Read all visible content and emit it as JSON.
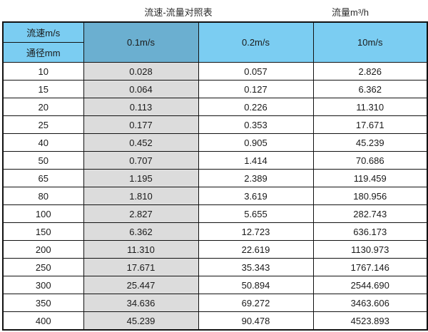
{
  "titles": {
    "left": "流速-流量对照表",
    "right": "流量m³/h"
  },
  "colors": {
    "header_blue": "#7bcdf2",
    "header_blue_dark": "#6bafd0",
    "highlight_column_gray": "#dcdcdc",
    "border": "#121212",
    "text": "#1a1a1a"
  },
  "chart_data": {
    "type": "table",
    "title": "流速-流量对照表",
    "unit_label": "流量m³/h",
    "corner_top": "流速m/s",
    "corner_bottom": "通径mm",
    "columns": [
      "0.1m/s",
      "0.2m/s",
      "10m/s"
    ],
    "highlighted_column_index": 0,
    "rows": [
      {
        "diameter": "10",
        "values": [
          "0.028",
          "0.057",
          "2.826"
        ]
      },
      {
        "diameter": "15",
        "values": [
          "0.064",
          "0.127",
          "6.362"
        ]
      },
      {
        "diameter": "20",
        "values": [
          "0.113",
          "0.226",
          "11.310"
        ]
      },
      {
        "diameter": "25",
        "values": [
          "0.177",
          "0.353",
          "17.671"
        ]
      },
      {
        "diameter": "40",
        "values": [
          "0.452",
          "0.905",
          "45.239"
        ]
      },
      {
        "diameter": "50",
        "values": [
          "0.707",
          "1.414",
          "70.686"
        ]
      },
      {
        "diameter": "65",
        "values": [
          "1.195",
          "2.389",
          "119.459"
        ]
      },
      {
        "diameter": "80",
        "values": [
          "1.810",
          "3.619",
          "180.956"
        ]
      },
      {
        "diameter": "100",
        "values": [
          "2.827",
          "5.655",
          "282.743"
        ]
      },
      {
        "diameter": "150",
        "values": [
          "6.362",
          "12.723",
          "636.173"
        ]
      },
      {
        "diameter": "200",
        "values": [
          "11.310",
          "22.619",
          "1130.973"
        ]
      },
      {
        "diameter": "250",
        "values": [
          "17.671",
          "35.343",
          "1767.146"
        ]
      },
      {
        "diameter": "300",
        "values": [
          "25.447",
          "50.894",
          "2544.690"
        ]
      },
      {
        "diameter": "350",
        "values": [
          "34.636",
          "69.272",
          "3463.606"
        ]
      },
      {
        "diameter": "400",
        "values": [
          "45.239",
          "90.478",
          "4523.893"
        ]
      }
    ]
  }
}
